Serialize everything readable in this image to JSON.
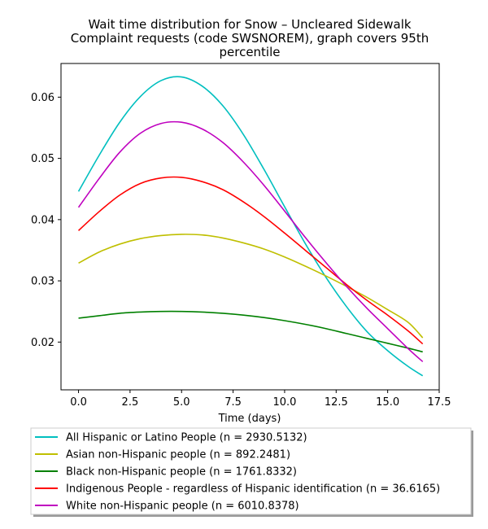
{
  "chart_data": {
    "type": "line",
    "title_lines": [
      "Wait time distribution  for Snow – Uncleared Sidewalk",
      "Complaint  requests (code SWSNOREM), graph covers 95th",
      "percentile"
    ],
    "xlabel": "Time (days)",
    "ylabel": "",
    "xlim": [
      -0.85,
      17.5
    ],
    "ylim": [
      0.0122,
      0.0655
    ],
    "x_ticks": [
      0.0,
      2.5,
      5.0,
      7.5,
      10.0,
      12.5,
      15.0,
      17.5
    ],
    "x_tick_labels": [
      "0.0",
      "2.5",
      "5.0",
      "7.5",
      "10.0",
      "12.5",
      "15.0",
      "17.5"
    ],
    "y_ticks": [
      0.02,
      0.03,
      0.04,
      0.05,
      0.06
    ],
    "y_tick_labels": [
      "0.02",
      "0.03",
      "0.04",
      "0.05",
      "0.06"
    ],
    "grid": false,
    "legend_position": "below",
    "x": [
      0,
      1,
      2,
      3,
      4,
      5,
      6,
      7,
      8,
      9,
      10,
      11,
      12,
      13,
      14,
      15,
      16,
      16.7
    ],
    "series": [
      {
        "name": "All Hispanic or Latino People (n = 2930.5132)",
        "color": "#00bfbf",
        "values": [
          0.0446,
          0.0505,
          0.0559,
          0.0601,
          0.0627,
          0.0633,
          0.0618,
          0.0586,
          0.0539,
          0.0482,
          0.0421,
          0.0361,
          0.0306,
          0.0258,
          0.0217,
          0.0186,
          0.016,
          0.0145
        ]
      },
      {
        "name": "Asian non-Hispanic people (n = 892.2481)",
        "color": "#bfbf00",
        "values": [
          0.0329,
          0.0347,
          0.036,
          0.0369,
          0.0374,
          0.0376,
          0.0375,
          0.037,
          0.0362,
          0.0352,
          0.0339,
          0.0324,
          0.0308,
          0.0291,
          0.0273,
          0.0253,
          0.0232,
          0.0207
        ]
      },
      {
        "name": "Black non-Hispanic people (n = 1761.8332)",
        "color": "#008000",
        "values": [
          0.0239,
          0.0243,
          0.0247,
          0.0249,
          0.025,
          0.025,
          0.0249,
          0.0247,
          0.0244,
          0.024,
          0.0235,
          0.0229,
          0.0222,
          0.0214,
          0.0206,
          0.0198,
          0.019,
          0.0184
        ]
      },
      {
        "name": "Indigenous People - regardless of Hispanic identification (n = 36.6165)",
        "color": "#ff0000",
        "values": [
          0.0382,
          0.0413,
          0.044,
          0.0459,
          0.0468,
          0.0469,
          0.0462,
          0.0449,
          0.0429,
          0.0405,
          0.0378,
          0.035,
          0.0322,
          0.0294,
          0.0268,
          0.0244,
          0.0218,
          0.0197
        ]
      },
      {
        "name": "White non-Hispanic people (n = 6010.8378)",
        "color": "#bf00bf",
        "values": [
          0.042,
          0.0467,
          0.051,
          0.0541,
          0.0557,
          0.0559,
          0.0548,
          0.0526,
          0.0494,
          0.0456,
          0.0414,
          0.0371,
          0.033,
          0.0291,
          0.0255,
          0.0222,
          0.0189,
          0.0168
        ]
      }
    ]
  }
}
